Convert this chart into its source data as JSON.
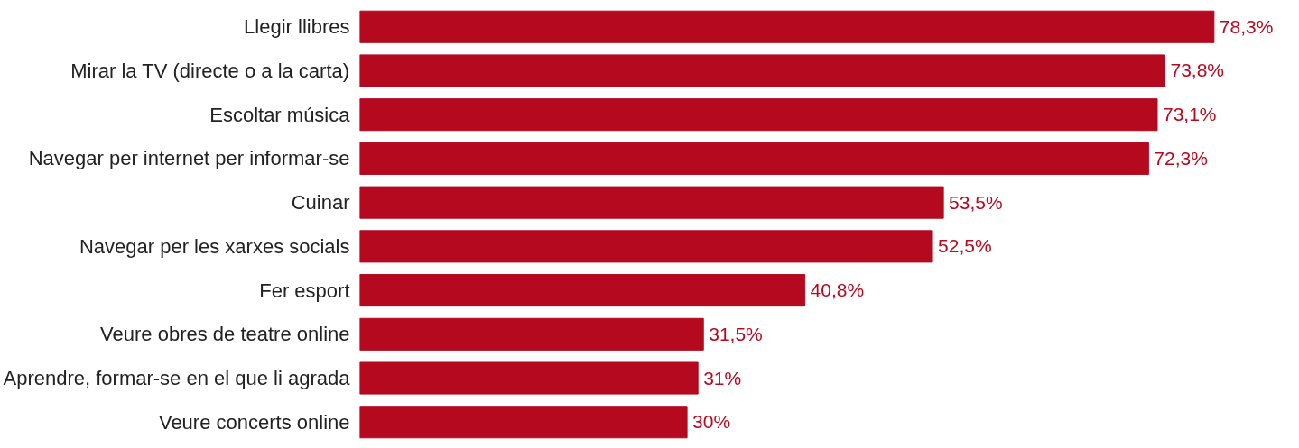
{
  "chart_data": {
    "type": "bar",
    "orientation": "horizontal",
    "categories": [
      "Llegir llibres",
      "Mirar la TV (directe o a la carta)",
      "Escoltar música",
      "Navegar per internet per informar-se",
      "Cuinar",
      "Navegar per les xarxes socials",
      "Fer esport",
      "Veure obres de teatre online",
      "Aprendre, formar-se en el que li agrada",
      "Veure concerts online"
    ],
    "values": [
      78.3,
      73.8,
      73.1,
      72.3,
      53.5,
      52.5,
      40.8,
      31.5,
      31,
      30
    ],
    "value_labels": [
      "78,3%",
      "73,8%",
      "73,1%",
      "72,3%",
      "53,5%",
      "52,5%",
      "40,8%",
      "31,5%",
      "31%",
      "30%"
    ],
    "color": "#b5091f"
  }
}
